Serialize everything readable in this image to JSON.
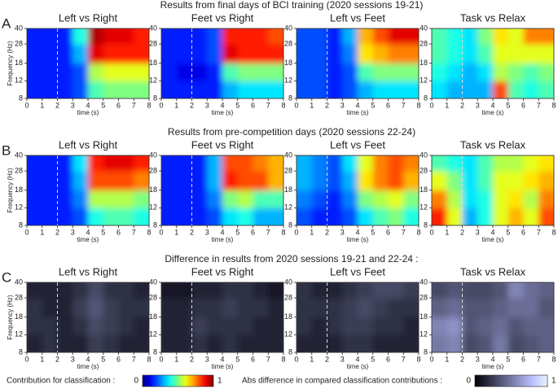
{
  "sections": [
    {
      "letter": "A",
      "title": "Results from final days of BCI training (2020 sessions 19-21)"
    },
    {
      "letter": "B",
      "title": "Results from pre-competition days (2020 sessions 22-24)"
    },
    {
      "letter": "C",
      "title": "Difference in results from 2020 sessions 19-21 and 22-24 :"
    }
  ],
  "colorbars": [
    {
      "label": "Contribution for classification :",
      "lim": [
        0,
        1
      ],
      "ticks": [
        0,
        1
      ],
      "colormap": "jet"
    },
    {
      "label": "Abs difference in compared classification contributions :",
      "lim": [
        0,
        1
      ],
      "ticks": [
        0,
        1
      ],
      "colormap": "gray"
    }
  ],
  "chart_data": [
    {
      "type": "heatmap",
      "title": "Left vs Right",
      "xlabel": "time (s)",
      "ylabel": "Frequency (Hz)",
      "colormap": "jet",
      "clim": [
        0,
        1
      ],
      "yscale": "log",
      "xlim": [
        0,
        8
      ],
      "ylim": [
        8,
        40
      ],
      "xticks": [
        0,
        1,
        2,
        3,
        4,
        5,
        6,
        7,
        8
      ],
      "yticks": [
        8,
        12,
        18,
        28,
        40
      ],
      "vline": 2,
      "xbins": [
        0,
        1,
        2,
        3,
        4,
        5,
        6,
        7,
        8
      ],
      "ybins": [
        8,
        12,
        18,
        28,
        40
      ],
      "z": [
        [
          0.15,
          0.15,
          0.15,
          0.2,
          0.45,
          0.5,
          0.5,
          0.5
        ],
        [
          0.15,
          0.15,
          0.15,
          0.2,
          0.55,
          0.6,
          0.6,
          0.6
        ],
        [
          0.15,
          0.15,
          0.15,
          0.3,
          0.9,
          0.85,
          0.85,
          0.85
        ],
        [
          0.15,
          0.15,
          0.15,
          0.4,
          0.95,
          0.9,
          0.9,
          0.85
        ]
      ]
    },
    {
      "type": "heatmap",
      "title": "Feet vs Right",
      "xlabel": "time (s)",
      "colormap": "jet",
      "clim": [
        0,
        1
      ],
      "yscale": "log",
      "xlim": [
        0,
        8
      ],
      "ylim": [
        8,
        40
      ],
      "xticks": [
        0,
        1,
        2,
        3,
        4,
        5,
        6,
        7,
        8
      ],
      "yticks": [
        8,
        12,
        18,
        28,
        40
      ],
      "vline": 2,
      "xbins": [
        0,
        1,
        2,
        3,
        4,
        5,
        6,
        7,
        8
      ],
      "ybins": [
        8,
        12,
        18,
        28,
        40
      ],
      "z": [
        [
          0.15,
          0.15,
          0.15,
          0.15,
          0.3,
          0.35,
          0.35,
          0.35
        ],
        [
          0.15,
          0.1,
          0.1,
          0.15,
          0.45,
          0.5,
          0.5,
          0.5
        ],
        [
          0.15,
          0.15,
          0.15,
          0.2,
          0.9,
          0.85,
          0.85,
          0.85
        ],
        [
          0.15,
          0.15,
          0.15,
          0.2,
          0.85,
          0.85,
          0.85,
          0.8
        ]
      ]
    },
    {
      "type": "heatmap",
      "title": "Left vs Feet",
      "xlabel": "time (s)",
      "colormap": "jet",
      "clim": [
        0,
        1
      ],
      "yscale": "log",
      "xlim": [
        0,
        8
      ],
      "ylim": [
        8,
        40
      ],
      "xticks": [
        0,
        1,
        2,
        3,
        4,
        5,
        6,
        7,
        8
      ],
      "yticks": [
        8,
        12,
        18,
        28,
        40
      ],
      "vline": 2,
      "xbins": [
        0,
        1,
        2,
        3,
        4,
        5,
        6,
        7,
        8
      ],
      "ybins": [
        8,
        12,
        18,
        28,
        40
      ],
      "z": [
        [
          0.2,
          0.2,
          0.15,
          0.2,
          0.3,
          0.35,
          0.35,
          0.35
        ],
        [
          0.2,
          0.2,
          0.15,
          0.2,
          0.45,
          0.5,
          0.5,
          0.5
        ],
        [
          0.2,
          0.2,
          0.15,
          0.25,
          0.65,
          0.7,
          0.75,
          0.75
        ],
        [
          0.2,
          0.2,
          0.15,
          0.3,
          0.7,
          0.8,
          0.9,
          0.9
        ]
      ]
    },
    {
      "type": "heatmap",
      "title": "Task vs Relax",
      "xlabel": "time (s)",
      "colormap": "jet",
      "clim": [
        0,
        1
      ],
      "yscale": "log",
      "xlim": [
        0,
        8
      ],
      "ylim": [
        8,
        40
      ],
      "xticks": [
        0,
        1,
        2,
        3,
        4,
        5,
        6,
        7,
        8
      ],
      "yticks": [
        8,
        12,
        18,
        28,
        40
      ],
      "vline": 2,
      "xbins": [
        0,
        1,
        2,
        3,
        4,
        5,
        6,
        7,
        8
      ],
      "ybins": [
        8,
        12,
        18,
        28,
        40
      ],
      "z": [
        [
          0.35,
          0.3,
          0.3,
          0.3,
          0.8,
          0.45,
          0.4,
          0.45
        ],
        [
          0.4,
          0.35,
          0.3,
          0.35,
          0.55,
          0.5,
          0.45,
          0.5
        ],
        [
          0.45,
          0.4,
          0.35,
          0.45,
          0.6,
          0.6,
          0.6,
          0.6
        ],
        [
          0.45,
          0.4,
          0.35,
          0.5,
          0.65,
          0.6,
          0.75,
          0.75
        ]
      ]
    },
    {
      "type": "heatmap",
      "title": "Left vs Right",
      "xlabel": "time (s)",
      "ylabel": "Frequency (Hz)",
      "colormap": "jet",
      "clim": [
        0,
        1
      ],
      "yscale": "log",
      "xlim": [
        0,
        8
      ],
      "ylim": [
        8,
        40
      ],
      "xticks": [
        0,
        1,
        2,
        3,
        4,
        5,
        6,
        7,
        8
      ],
      "yticks": [
        8,
        12,
        18,
        28,
        40
      ],
      "vline": 2,
      "xbins": [
        0,
        1,
        2,
        3,
        4,
        5,
        6,
        7,
        8
      ],
      "ybins": [
        8,
        12,
        18,
        28,
        40
      ],
      "z": [
        [
          0.15,
          0.15,
          0.15,
          0.2,
          0.4,
          0.45,
          0.45,
          0.4
        ],
        [
          0.15,
          0.15,
          0.15,
          0.25,
          0.55,
          0.55,
          0.55,
          0.5
        ],
        [
          0.15,
          0.15,
          0.15,
          0.3,
          0.8,
          0.8,
          0.8,
          0.75
        ],
        [
          0.15,
          0.15,
          0.15,
          0.35,
          0.85,
          0.9,
          0.9,
          0.85
        ]
      ]
    },
    {
      "type": "heatmap",
      "title": "Feet vs Right",
      "xlabel": "time (s)",
      "colormap": "jet",
      "clim": [
        0,
        1
      ],
      "yscale": "log",
      "xlim": [
        0,
        8
      ],
      "ylim": [
        8,
        40
      ],
      "xticks": [
        0,
        1,
        2,
        3,
        4,
        5,
        6,
        7,
        8
      ],
      "yticks": [
        8,
        12,
        18,
        28,
        40
      ],
      "vline": 2,
      "xbins": [
        0,
        1,
        2,
        3,
        4,
        5,
        6,
        7,
        8
      ],
      "ybins": [
        8,
        12,
        18,
        28,
        40
      ],
      "z": [
        [
          0.15,
          0.15,
          0.15,
          0.2,
          0.35,
          0.4,
          0.3,
          0.3
        ],
        [
          0.15,
          0.15,
          0.15,
          0.25,
          0.5,
          0.55,
          0.45,
          0.45
        ],
        [
          0.15,
          0.15,
          0.15,
          0.3,
          0.85,
          0.8,
          0.8,
          0.7
        ],
        [
          0.15,
          0.15,
          0.15,
          0.3,
          0.8,
          0.8,
          0.75,
          0.7
        ]
      ]
    },
    {
      "type": "heatmap",
      "title": "Left vs Feet",
      "xlabel": "time (s)",
      "colormap": "jet",
      "clim": [
        0,
        1
      ],
      "yscale": "log",
      "xlim": [
        0,
        8
      ],
      "ylim": [
        8,
        40
      ],
      "xticks": [
        0,
        1,
        2,
        3,
        4,
        5,
        6,
        7,
        8
      ],
      "yticks": [
        8,
        12,
        18,
        28,
        40
      ],
      "vline": 2,
      "xbins": [
        0,
        1,
        2,
        3,
        4,
        5,
        6,
        7,
        8
      ],
      "ybins": [
        8,
        12,
        18,
        28,
        40
      ],
      "z": [
        [
          0.2,
          0.15,
          0.15,
          0.2,
          0.35,
          0.45,
          0.5,
          0.4
        ],
        [
          0.25,
          0.2,
          0.15,
          0.25,
          0.5,
          0.55,
          0.6,
          0.5
        ],
        [
          0.3,
          0.25,
          0.2,
          0.3,
          0.65,
          0.75,
          0.8,
          0.7
        ],
        [
          0.3,
          0.25,
          0.2,
          0.35,
          0.6,
          0.75,
          0.8,
          0.75
        ]
      ]
    },
    {
      "type": "heatmap",
      "title": "Task vs Relax",
      "xlabel": "time (s)",
      "colormap": "jet",
      "clim": [
        0,
        1
      ],
      "yscale": "log",
      "xlim": [
        0,
        8
      ],
      "ylim": [
        8,
        40
      ],
      "xticks": [
        0,
        1,
        2,
        3,
        4,
        5,
        6,
        7,
        8
      ],
      "yticks": [
        8,
        12,
        18,
        28,
        40
      ],
      "vline": 2,
      "xbins": [
        0,
        1,
        2,
        3,
        4,
        5,
        6,
        7,
        8
      ],
      "ybins": [
        8,
        12,
        18,
        28,
        40
      ],
      "z": [
        [
          0.85,
          0.6,
          0.3,
          0.4,
          0.6,
          0.7,
          0.6,
          0.8
        ],
        [
          0.75,
          0.55,
          0.35,
          0.4,
          0.6,
          0.65,
          0.55,
          0.75
        ],
        [
          0.6,
          0.5,
          0.35,
          0.45,
          0.6,
          0.6,
          0.65,
          0.7
        ],
        [
          0.45,
          0.4,
          0.35,
          0.45,
          0.55,
          0.55,
          0.6,
          0.65
        ]
      ]
    },
    {
      "type": "heatmap",
      "title": "Left vs Right",
      "xlabel": "time (s)",
      "ylabel": "Frequency (Hz)",
      "colormap": "gray",
      "clim": [
        0,
        1
      ],
      "yscale": "log",
      "xlim": [
        0,
        8
      ],
      "ylim": [
        8,
        40
      ],
      "xticks": [
        0,
        1,
        2,
        3,
        4,
        5,
        6,
        7,
        8
      ],
      "yticks": [
        8,
        12,
        18,
        28,
        40
      ],
      "vline": 2,
      "xbins": [
        0,
        1,
        2,
        3,
        4,
        5,
        6,
        7,
        8
      ],
      "ybins": [
        8,
        12,
        18,
        28,
        40
      ],
      "z": [
        [
          0.15,
          0.2,
          0.15,
          0.15,
          0.25,
          0.2,
          0.15,
          0.15
        ],
        [
          0.2,
          0.2,
          0.15,
          0.2,
          0.3,
          0.25,
          0.2,
          0.15
        ],
        [
          0.2,
          0.15,
          0.15,
          0.25,
          0.35,
          0.25,
          0.2,
          0.2
        ],
        [
          0.15,
          0.15,
          0.15,
          0.2,
          0.3,
          0.2,
          0.2,
          0.15
        ]
      ]
    },
    {
      "type": "heatmap",
      "title": "Feet vs Right",
      "xlabel": "time (s)",
      "colormap": "gray",
      "clim": [
        0,
        1
      ],
      "yscale": "log",
      "xlim": [
        0,
        8
      ],
      "ylim": [
        8,
        40
      ],
      "xticks": [
        0,
        1,
        2,
        3,
        4,
        5,
        6,
        7,
        8
      ],
      "yticks": [
        8,
        12,
        18,
        28,
        40
      ],
      "vline": 2,
      "xbins": [
        0,
        1,
        2,
        3,
        4,
        5,
        6,
        7,
        8
      ],
      "ybins": [
        8,
        12,
        18,
        28,
        40
      ],
      "z": [
        [
          0.15,
          0.15,
          0.2,
          0.15,
          0.2,
          0.15,
          0.15,
          0.15
        ],
        [
          0.15,
          0.15,
          0.25,
          0.2,
          0.2,
          0.2,
          0.15,
          0.15
        ],
        [
          0.15,
          0.15,
          0.2,
          0.2,
          0.25,
          0.2,
          0.2,
          0.15
        ],
        [
          0.1,
          0.1,
          0.15,
          0.15,
          0.2,
          0.2,
          0.15,
          0.1
        ]
      ]
    },
    {
      "type": "heatmap",
      "title": "Left vs Feet",
      "xlabel": "time (s)",
      "colormap": "gray",
      "clim": [
        0,
        1
      ],
      "yscale": "log",
      "xlim": [
        0,
        8
      ],
      "ylim": [
        8,
        40
      ],
      "xticks": [
        0,
        1,
        2,
        3,
        4,
        5,
        6,
        7,
        8
      ],
      "yticks": [
        8,
        12,
        18,
        28,
        40
      ],
      "vline": 2,
      "xbins": [
        0,
        1,
        2,
        3,
        4,
        5,
        6,
        7,
        8
      ],
      "ybins": [
        8,
        12,
        18,
        28,
        40
      ],
      "z": [
        [
          0.15,
          0.15,
          0.15,
          0.2,
          0.2,
          0.15,
          0.15,
          0.15
        ],
        [
          0.2,
          0.15,
          0.2,
          0.25,
          0.25,
          0.2,
          0.2,
          0.15
        ],
        [
          0.2,
          0.2,
          0.2,
          0.25,
          0.3,
          0.25,
          0.2,
          0.2
        ],
        [
          0.2,
          0.15,
          0.15,
          0.2,
          0.25,
          0.3,
          0.3,
          0.25
        ]
      ]
    },
    {
      "type": "heatmap",
      "title": "Task vs Relax",
      "xlabel": "time (s)",
      "colormap": "gray",
      "clim": [
        0,
        1
      ],
      "yscale": "log",
      "xlim": [
        0,
        8
      ],
      "ylim": [
        8,
        40
      ],
      "xticks": [
        0,
        1,
        2,
        3,
        4,
        5,
        6,
        7,
        8
      ],
      "yticks": [
        8,
        12,
        18,
        28,
        40
      ],
      "vline": 2,
      "xbins": [
        0,
        1,
        2,
        3,
        4,
        5,
        6,
        7,
        8
      ],
      "ybins": [
        8,
        12,
        18,
        28,
        40
      ],
      "z": [
        [
          0.5,
          0.55,
          0.3,
          0.35,
          0.5,
          0.3,
          0.35,
          0.4
        ],
        [
          0.55,
          0.6,
          0.35,
          0.4,
          0.45,
          0.35,
          0.4,
          0.4
        ],
        [
          0.4,
          0.45,
          0.35,
          0.35,
          0.4,
          0.45,
          0.45,
          0.35
        ],
        [
          0.3,
          0.35,
          0.3,
          0.3,
          0.35,
          0.55,
          0.45,
          0.4
        ]
      ]
    }
  ]
}
